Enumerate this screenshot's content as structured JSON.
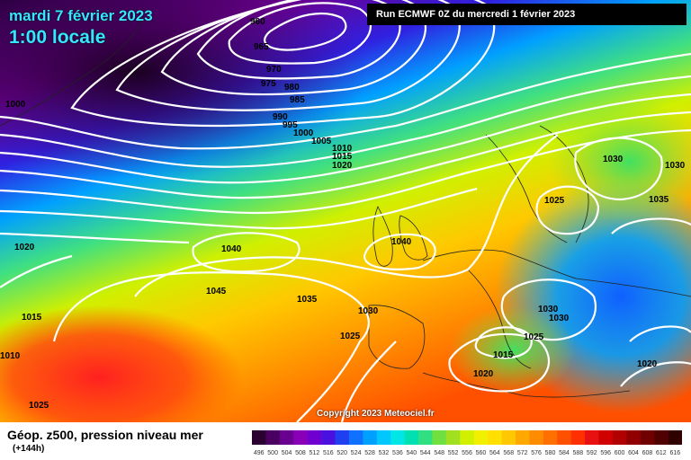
{
  "header": {
    "date": "mardi 7 février 2023",
    "time": "1:00 locale",
    "run": "Run ECMWF 0Z du mercredi 1 février 2023"
  },
  "copyright": "Copyright 2023 Meteociel.fr",
  "legend": {
    "title": "Géop. z500, pression niveau mer",
    "lead": "(+144h)",
    "scale_labels": [
      "496",
      "500",
      "504",
      "508",
      "512",
      "516",
      "520",
      "524",
      "528",
      "532",
      "536",
      "540",
      "544",
      "548",
      "552",
      "556",
      "560",
      "564",
      "568",
      "572",
      "576",
      "580",
      "584",
      "588",
      "592",
      "596",
      "600",
      "604",
      "608",
      "612",
      "616"
    ],
    "scale_colors": [
      "#2a0030",
      "#4a0060",
      "#6a0090",
      "#8a00b8",
      "#7000d0",
      "#4a10e0",
      "#2040f0",
      "#1070ff",
      "#00a0ff",
      "#00c8ff",
      "#00e6e6",
      "#00e0b0",
      "#30e080",
      "#70e040",
      "#a0e020",
      "#d0f000",
      "#f0f000",
      "#ffe000",
      "#ffc800",
      "#ffa800",
      "#ff8c00",
      "#ff7000",
      "#ff5000",
      "#ff3000",
      "#e81010",
      "#d00000",
      "#b00000",
      "#900000",
      "#700000",
      "#500000",
      "#300000"
    ]
  },
  "isobars": [
    "960",
    "965",
    "970",
    "975",
    "980",
    "985",
    "990",
    "995",
    "1000",
    "1005",
    "1010",
    "1015",
    "1020",
    "1000",
    "1020",
    "1040",
    "1040",
    "1045",
    "1035",
    "1030",
    "1025",
    "1015",
    "1010",
    "1025",
    "1030",
    "1030",
    "1035",
    "1025",
    "1030",
    "1030",
    "1025",
    "1015",
    "1020",
    "1020"
  ]
}
